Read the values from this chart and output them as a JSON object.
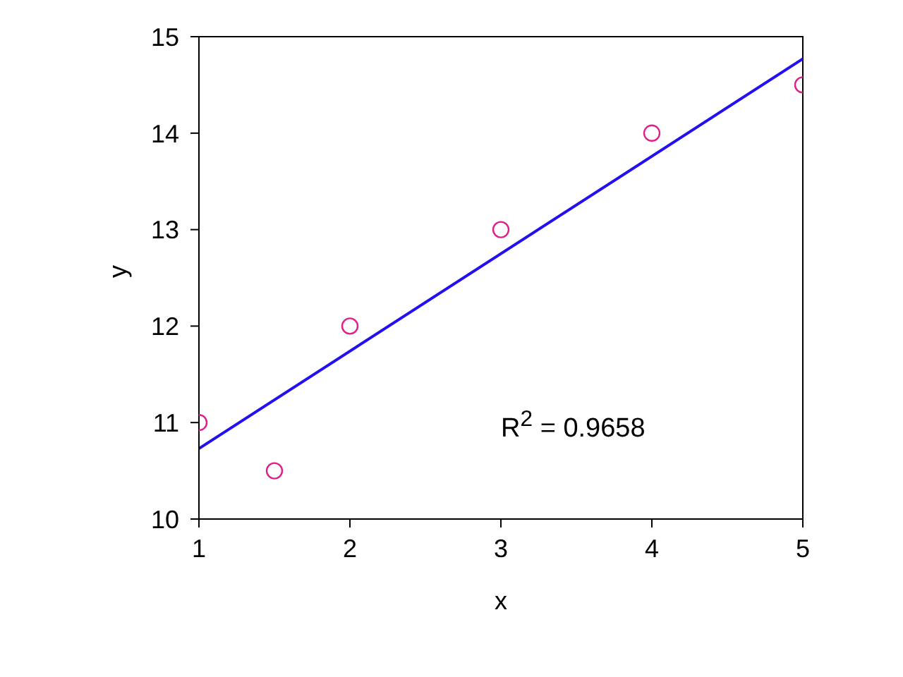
{
  "chart_data": {
    "type": "scatter",
    "xlabel": "x",
    "ylabel": "y",
    "xlim": [
      1,
      5
    ],
    "xticks": [
      1,
      2,
      3,
      4,
      5
    ],
    "ylim": [
      10,
      15
    ],
    "yticks": [
      10,
      11,
      12,
      13,
      14,
      15
    ],
    "grid": false,
    "legend": false,
    "marker": "circle",
    "series": [
      {
        "color": "#e0208a",
        "x": [
          1,
          1.5,
          2,
          3,
          4,
          5
        ],
        "values": [
          11,
          10.5,
          12,
          13,
          14,
          14.5
        ]
      },
      {
        "type": "line",
        "color": "#2211ee",
        "marker": "none",
        "x": [
          1,
          5
        ],
        "values": [
          10.73,
          14.77
        ]
      }
    ],
    "annotations": [
      "R$^{2}$ = 0.9658"
    ]
  }
}
